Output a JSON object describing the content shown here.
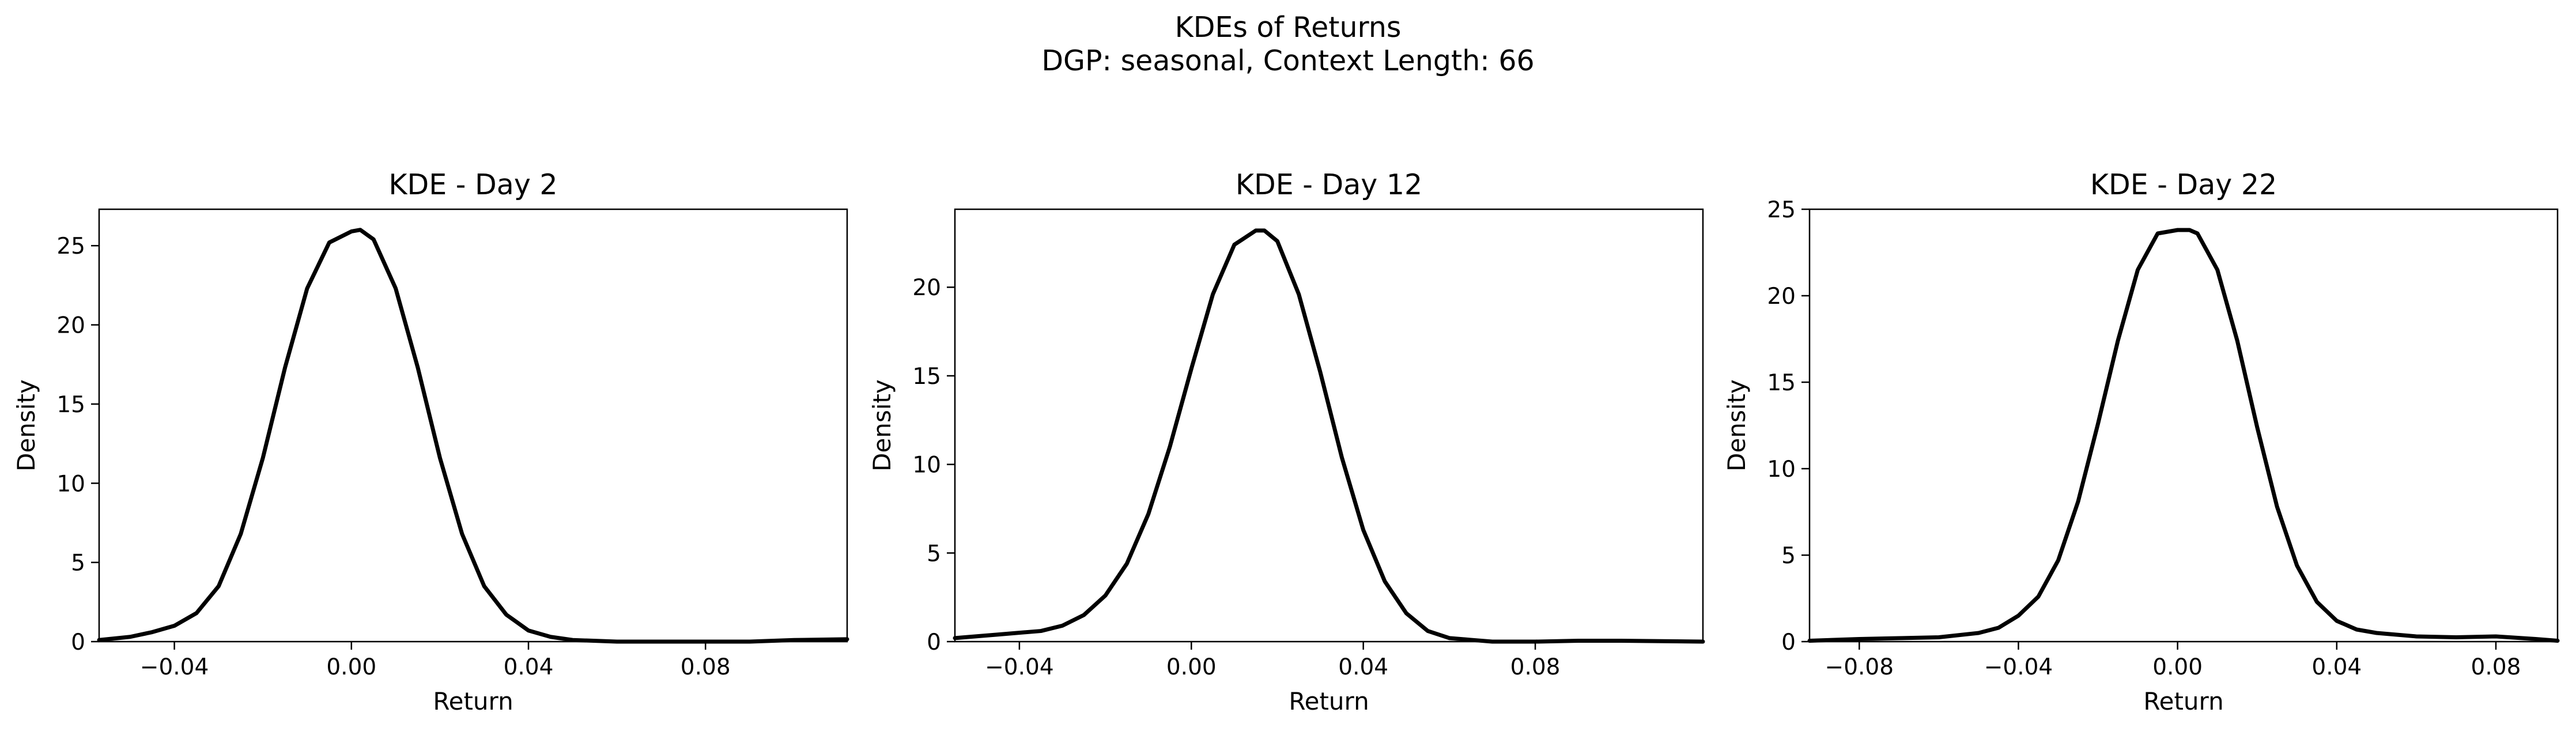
{
  "figure": {
    "title_line1": "KDEs of Returns",
    "title_line2": "DGP: seasonal, Context Length: 66"
  },
  "chart_data": [
    {
      "type": "line",
      "title": "KDE - Day 2",
      "xlabel": "Return",
      "ylabel": "Density",
      "xlim": [
        -0.057,
        0.112
      ],
      "ylim": [
        0,
        27.3
      ],
      "xticks": [
        -0.04,
        0.0,
        0.04,
        0.08
      ],
      "xtick_labels": [
        "−0.04",
        "0.00",
        "0.04",
        "0.08"
      ],
      "yticks": [
        0,
        5,
        10,
        15,
        20,
        25
      ],
      "ytick_labels": [
        "0",
        "5",
        "10",
        "15",
        "20",
        "25"
      ],
      "grid": false,
      "line_color": "#000000",
      "series": [
        {
          "x": [
            -0.057,
            -0.05,
            -0.045,
            -0.04,
            -0.035,
            -0.03,
            -0.025,
            -0.02,
            -0.015,
            -0.01,
            -0.005,
            0.0,
            0.002,
            0.005,
            0.01,
            0.015,
            0.02,
            0.025,
            0.03,
            0.035,
            0.04,
            0.045,
            0.05,
            0.06,
            0.07,
            0.08,
            0.09,
            0.1,
            0.112
          ],
          "y": [
            0.1,
            0.3,
            0.6,
            1.0,
            1.8,
            3.5,
            6.8,
            11.6,
            17.3,
            22.3,
            25.2,
            25.9,
            26.0,
            25.4,
            22.3,
            17.3,
            11.6,
            6.8,
            3.5,
            1.7,
            0.7,
            0.3,
            0.1,
            0.0,
            0.0,
            0.0,
            0.0,
            0.1,
            0.15
          ]
        }
      ]
    },
    {
      "type": "line",
      "title": "KDE - Day 12",
      "xlabel": "Return",
      "ylabel": "Density",
      "xlim": [
        -0.055,
        0.119
      ],
      "ylim": [
        0,
        24.4
      ],
      "xticks": [
        -0.04,
        0.0,
        0.04,
        0.08
      ],
      "xtick_labels": [
        "−0.04",
        "0.00",
        "0.04",
        "0.08"
      ],
      "yticks": [
        0,
        5,
        10,
        15,
        20
      ],
      "ytick_labels": [
        "0",
        "5",
        "10",
        "15",
        "20"
      ],
      "grid": false,
      "line_color": "#000000",
      "series": [
        {
          "x": [
            -0.055,
            -0.045,
            -0.035,
            -0.03,
            -0.025,
            -0.02,
            -0.015,
            -0.01,
            -0.005,
            0.0,
            0.005,
            0.01,
            0.015,
            0.017,
            0.02,
            0.025,
            0.03,
            0.035,
            0.04,
            0.045,
            0.05,
            0.055,
            0.06,
            0.065,
            0.07,
            0.08,
            0.09,
            0.1,
            0.119
          ],
          "y": [
            0.2,
            0.4,
            0.6,
            0.9,
            1.5,
            2.6,
            4.4,
            7.2,
            11.0,
            15.4,
            19.6,
            22.4,
            23.2,
            23.2,
            22.6,
            19.6,
            15.2,
            10.4,
            6.3,
            3.4,
            1.6,
            0.6,
            0.2,
            0.1,
            0.0,
            0.0,
            0.05,
            0.05,
            0.0
          ]
        }
      ]
    },
    {
      "type": "line",
      "title": "KDE - Day 22",
      "xlabel": "Return",
      "ylabel": "Density",
      "xlim": [
        -0.0925,
        0.0955
      ],
      "ylim": [
        0,
        25.0
      ],
      "xticks": [
        -0.08,
        -0.04,
        0.0,
        0.04,
        0.08
      ],
      "xtick_labels": [
        "−0.08",
        "−0.04",
        "0.00",
        "0.04",
        "0.08"
      ],
      "yticks": [
        0,
        5,
        10,
        15,
        20,
        25
      ],
      "ytick_labels": [
        "0",
        "5",
        "10",
        "15",
        "20",
        "25"
      ],
      "grid": false,
      "line_color": "#000000",
      "series": [
        {
          "x": [
            -0.0925,
            -0.08,
            -0.07,
            -0.06,
            -0.05,
            -0.045,
            -0.04,
            -0.035,
            -0.03,
            -0.025,
            -0.02,
            -0.015,
            -0.01,
            -0.005,
            0.0,
            0.003,
            0.005,
            0.01,
            0.015,
            0.02,
            0.025,
            0.03,
            0.035,
            0.04,
            0.045,
            0.05,
            0.06,
            0.07,
            0.08,
            0.09,
            0.0955
          ],
          "y": [
            0.05,
            0.15,
            0.2,
            0.25,
            0.5,
            0.8,
            1.5,
            2.6,
            4.7,
            8.1,
            12.6,
            17.4,
            21.5,
            23.6,
            23.8,
            23.8,
            23.6,
            21.5,
            17.4,
            12.4,
            7.8,
            4.4,
            2.3,
            1.2,
            0.7,
            0.5,
            0.3,
            0.25,
            0.3,
            0.15,
            0.05
          ]
        }
      ]
    }
  ]
}
